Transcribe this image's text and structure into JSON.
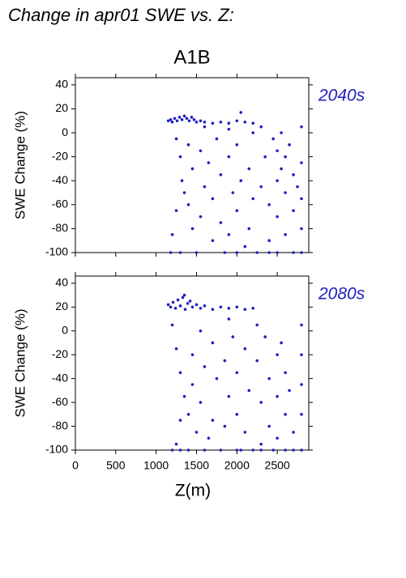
{
  "title": "Change in apr01 SWE vs. Z:",
  "scenario": "A1B",
  "chart_data": [
    {
      "type": "scatter",
      "title": "2040s",
      "ylabel": "SWE Change (%)",
      "color": "#2020c0",
      "xlim": [
        0,
        2890
      ],
      "ylim": [
        -100,
        46
      ],
      "xticks": [
        0,
        500,
        1000,
        1500,
        2000,
        2500
      ],
      "yticks": [
        -100,
        -80,
        -60,
        -40,
        -20,
        0,
        20,
        40
      ],
      "x": [
        1150,
        1180,
        1200,
        1230,
        1260,
        1290,
        1320,
        1350,
        1380,
        1410,
        1440,
        1470,
        1500,
        1550,
        1600,
        1700,
        1800,
        1900,
        2000,
        2100,
        2200,
        2050,
        1250,
        1300,
        1320,
        1250,
        1200,
        1300,
        1400,
        1450,
        1400,
        1450,
        1500,
        1550,
        1600,
        1550,
        1650,
        1700,
        1700,
        1750,
        1800,
        1800,
        1850,
        1900,
        1950,
        1900,
        2000,
        2050,
        2000,
        2100,
        2150,
        2200,
        2150,
        2250,
        2300,
        2300,
        2350,
        2400,
        2400,
        2450,
        2500,
        2500,
        2500,
        2500,
        2550,
        2550,
        2600,
        2600,
        2600,
        2650,
        2700,
        2700,
        2700,
        2750,
        2800,
        2800,
        2800,
        2800,
        2800,
        1180,
        2000,
        2400,
        1350,
        1600,
        1900,
        2200
      ],
      "values": [
        10,
        11,
        9,
        12,
        10,
        13,
        11,
        14,
        12,
        10,
        13,
        11,
        9,
        10,
        9,
        8,
        9,
        8,
        10,
        9,
        8,
        17,
        -5,
        -20,
        -40,
        -65,
        -85,
        -100,
        -10,
        -30,
        -60,
        -80,
        -100,
        -15,
        -45,
        -70,
        -25,
        -55,
        -90,
        -5,
        -35,
        -75,
        -100,
        -20,
        -50,
        -85,
        -10,
        -40,
        -65,
        -95,
        -30,
        -55,
        -80,
        -100,
        5,
        -45,
        -20,
        -60,
        -90,
        -5,
        -15,
        -40,
        -70,
        -100,
        0,
        -30,
        -20,
        -50,
        -85,
        -10,
        -35,
        -65,
        -100,
        -45,
        5,
        -25,
        -55,
        -80,
        -100,
        -100,
        -100,
        -100,
        -50,
        5,
        3,
        0
      ]
    },
    {
      "type": "scatter",
      "title": "2080s",
      "ylabel": "SWE Change (%)",
      "xlabel": "Z(m)",
      "color": "#2020c0",
      "xlim": [
        0,
        2890
      ],
      "ylim": [
        -100,
        46
      ],
      "xticks": [
        0,
        500,
        1000,
        1500,
        2000,
        2500
      ],
      "yticks": [
        -100,
        -80,
        -60,
        -40,
        -20,
        0,
        20,
        40
      ],
      "x": [
        1150,
        1180,
        1210,
        1240,
        1270,
        1300,
        1330,
        1360,
        1390,
        1420,
        1450,
        1500,
        1550,
        1600,
        1700,
        1800,
        1900,
        2000,
        2100,
        2200,
        1350,
        1200,
        1250,
        1300,
        1350,
        1300,
        1250,
        1200,
        1400,
        1450,
        1450,
        1400,
        1500,
        1550,
        1600,
        1550,
        1650,
        1700,
        1750,
        1700,
        1800,
        1850,
        1900,
        1850,
        1950,
        2000,
        2000,
        2050,
        2100,
        2150,
        2100,
        2200,
        2250,
        2300,
        2300,
        2350,
        2400,
        2400,
        2450,
        2500,
        2500,
        2500,
        2550,
        2600,
        2600,
        2600,
        2650,
        2700,
        2800,
        2800,
        2800,
        2800,
        2800,
        1300,
        2300,
        2700,
        1600,
        2000,
        2250,
        1900
      ],
      "values": [
        22,
        20,
        24,
        19,
        26,
        21,
        28,
        18,
        23,
        25,
        20,
        22,
        19,
        21,
        18,
        20,
        19,
        20,
        18,
        19,
        30,
        5,
        -15,
        -35,
        -55,
        -75,
        -95,
        -100,
        -100,
        -20,
        -45,
        -70,
        -85,
        0,
        -30,
        -60,
        -90,
        -10,
        -40,
        -75,
        -100,
        -25,
        -55,
        -80,
        -5,
        -35,
        -70,
        -100,
        -15,
        -50,
        -85,
        -100,
        -25,
        -60,
        -95,
        -5,
        -40,
        -80,
        -100,
        -20,
        -55,
        -90,
        -10,
        -35,
        -70,
        -100,
        -50,
        -85,
        5,
        -20,
        -45,
        -70,
        -100,
        -100,
        -100,
        -100,
        -100,
        -100,
        5,
        10
      ]
    }
  ]
}
